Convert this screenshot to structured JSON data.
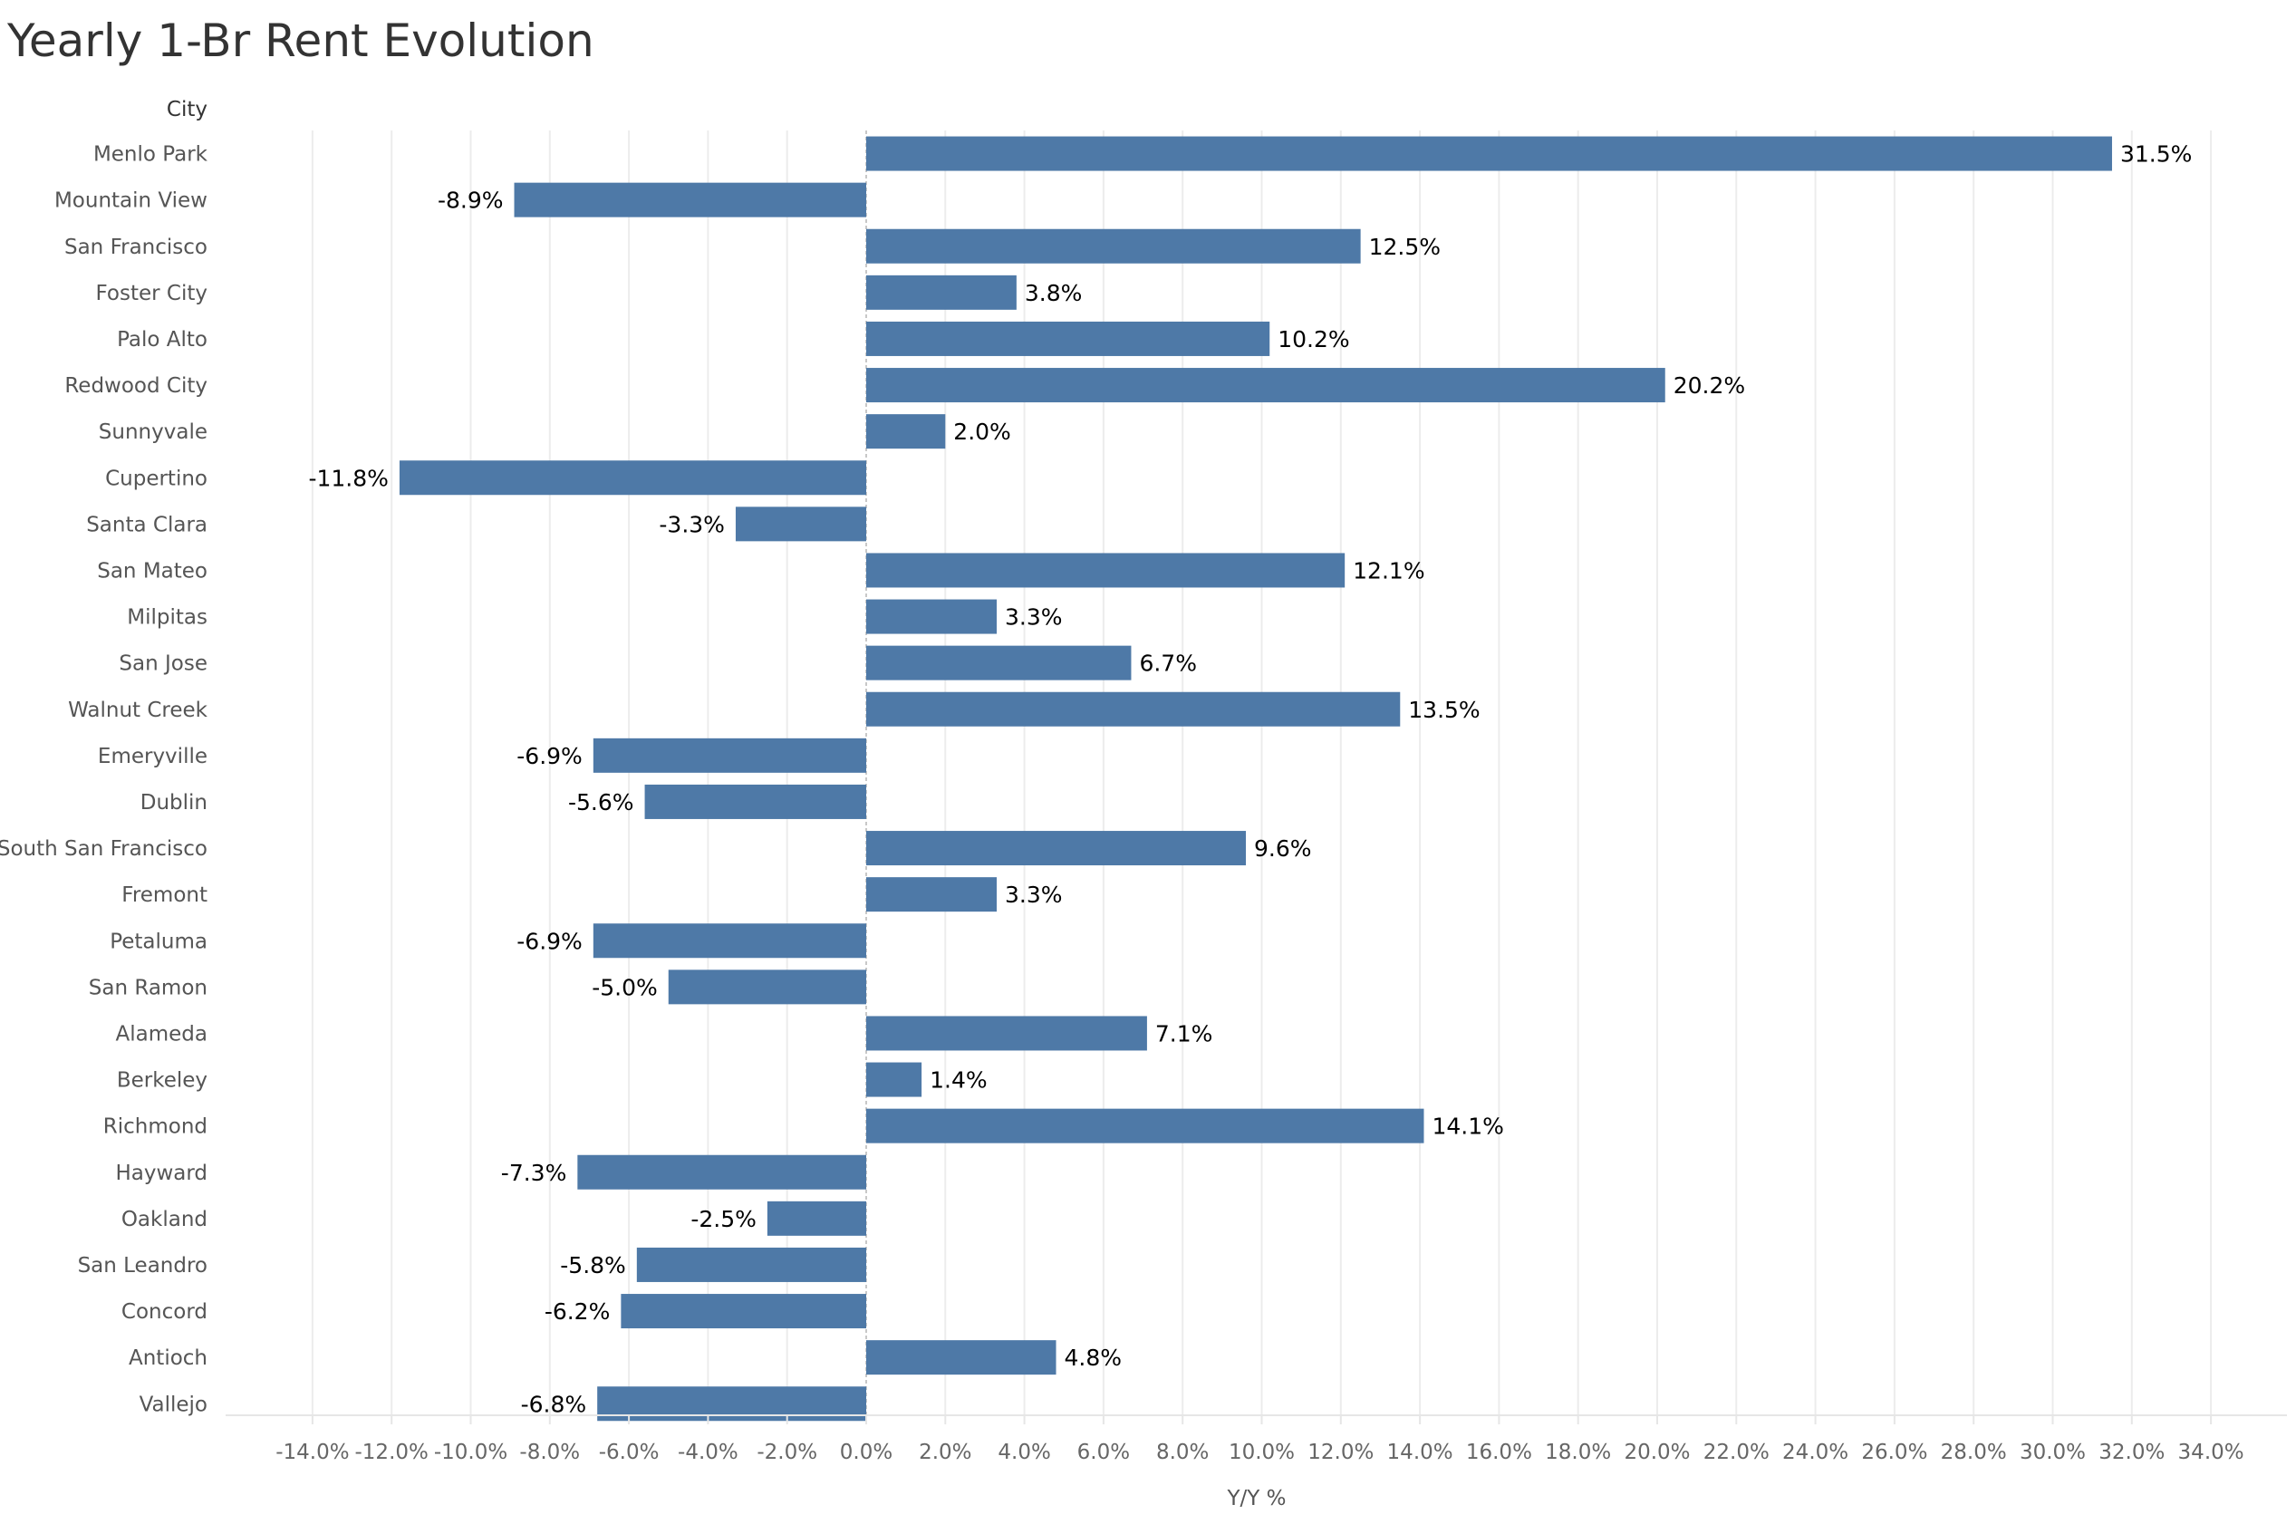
{
  "chart_data": {
    "type": "bar",
    "orientation": "horizontal",
    "title": "Yearly 1-Br Rent Evolution",
    "category_axis_title": "City",
    "xlabel": "Y/Y %",
    "ylabel": "",
    "categories": [
      "Menlo Park",
      "Mountain View",
      "San Francisco",
      "Foster City",
      "Palo Alto",
      "Redwood City",
      "Sunnyvale",
      "Cupertino",
      "Santa Clara",
      "San Mateo",
      "Milpitas",
      "San Jose",
      "Walnut Creek",
      "Emeryville",
      "Dublin",
      "South San Francisco",
      "Fremont",
      "Petaluma",
      "San Ramon",
      "Alameda",
      "Berkeley",
      "Richmond",
      "Hayward",
      "Oakland",
      "San Leandro",
      "Concord",
      "Antioch",
      "Vallejo"
    ],
    "values": [
      31.5,
      -8.9,
      12.5,
      3.8,
      10.2,
      20.2,
      2.0,
      -11.8,
      -3.3,
      12.1,
      3.3,
      6.7,
      13.5,
      -6.9,
      -5.6,
      9.6,
      3.3,
      -6.9,
      -5.0,
      7.1,
      1.4,
      14.1,
      -7.3,
      -2.5,
      -5.8,
      -6.2,
      4.8,
      -6.8
    ],
    "data_labels": [
      "31.5%",
      "-8.9%",
      "12.5%",
      "3.8%",
      "10.2%",
      "20.2%",
      "2.0%",
      "-11.8%",
      "-3.3%",
      "12.1%",
      "3.3%",
      "6.7%",
      "13.5%",
      "-6.9%",
      "-5.6%",
      "9.6%",
      "3.3%",
      "-6.9%",
      "-5.0%",
      "7.1%",
      "1.4%",
      "14.1%",
      "-7.3%",
      "-2.5%",
      "-5.8%",
      "-6.2%",
      "4.8%",
      "-6.8%"
    ],
    "xlim": [
      -16,
      36
    ],
    "xticks": [
      -14,
      -12,
      -10,
      -8,
      -6,
      -4,
      -2,
      0,
      2,
      4,
      6,
      8,
      10,
      12,
      14,
      16,
      18,
      20,
      22,
      24,
      26,
      28,
      30,
      32,
      34
    ],
    "xtick_labels": [
      "-14.0%",
      "-12.0%",
      "-10.0%",
      "-8.0%",
      "-6.0%",
      "-4.0%",
      "-2.0%",
      "0.0%",
      "2.0%",
      "4.0%",
      "6.0%",
      "8.0%",
      "10.0%",
      "12.0%",
      "14.0%",
      "16.0%",
      "18.0%",
      "20.0%",
      "22.0%",
      "24.0%",
      "26.0%",
      "28.0%",
      "30.0%",
      "32.0%",
      "34.0%"
    ],
    "grid": true,
    "legend": "none",
    "colors": {
      "bar": "#4e79a7",
      "grid": "#ececec",
      "zero_line": "#c8c8c8",
      "axis": "#e6e6e6",
      "tick_text": "#666666",
      "category_text": "#555555",
      "data_label_text": "#000000",
      "title_text": "#333333"
    }
  }
}
